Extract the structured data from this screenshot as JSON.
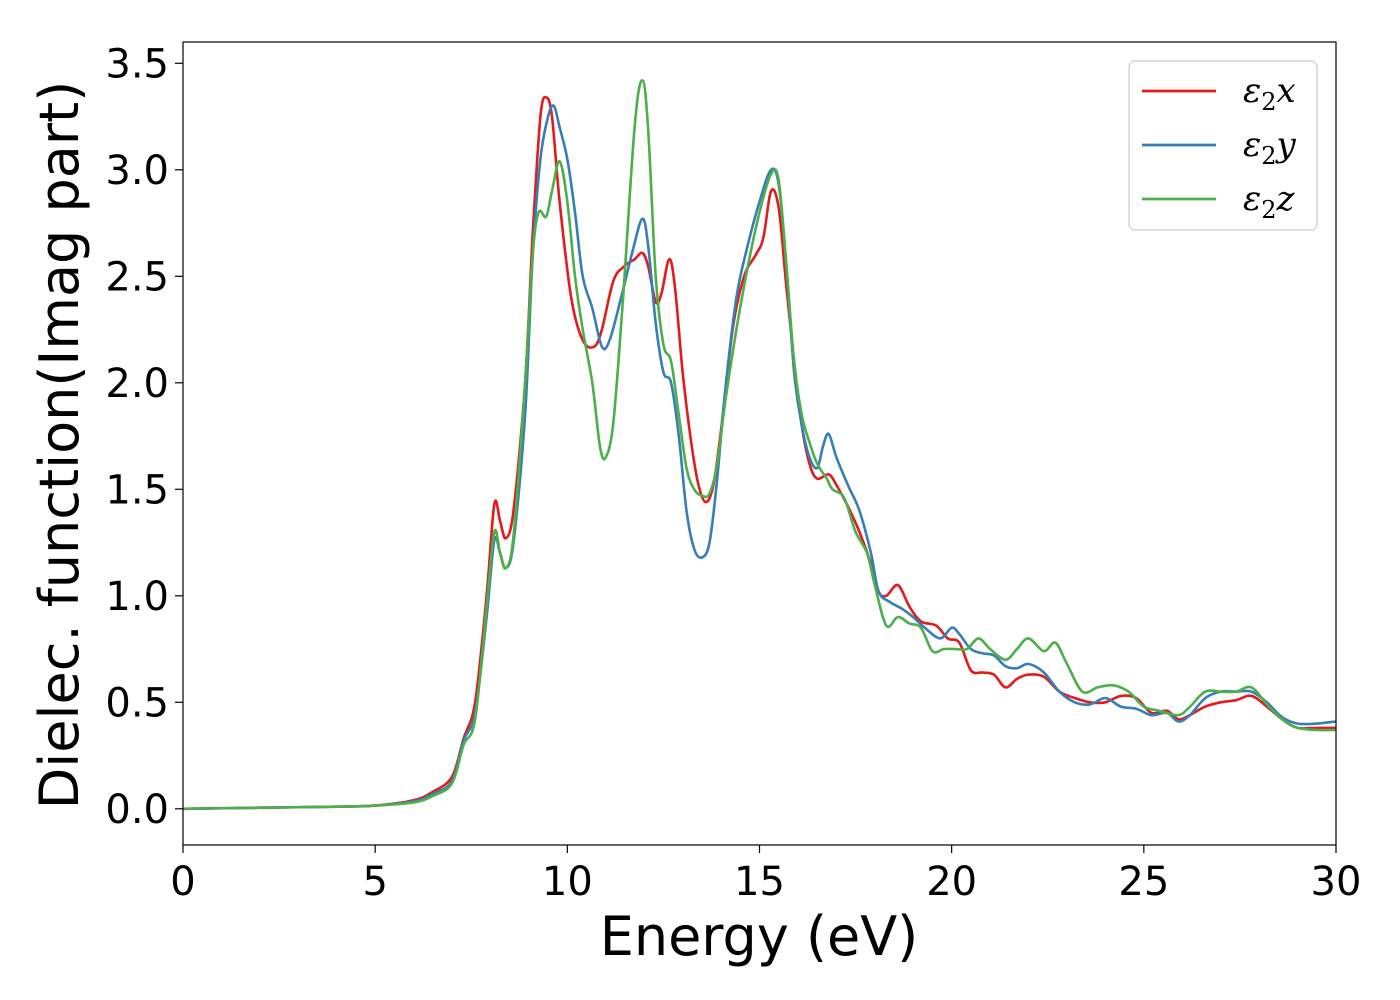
{
  "chart_data": {
    "type": "line",
    "title": "",
    "xlabel": "Energy (eV)",
    "ylabel": "Dielec. function(Imag part)",
    "xlim": [
      0,
      30
    ],
    "ylim": [
      -0.17,
      3.6
    ],
    "xticks": [
      0,
      5,
      10,
      15,
      20,
      25,
      30
    ],
    "yticks": [
      0.0,
      0.5,
      1.0,
      1.5,
      2.0,
      2.5,
      3.0,
      3.5
    ],
    "xtick_labels": [
      "0",
      "5",
      "10",
      "15",
      "20",
      "25",
      "30"
    ],
    "ytick_labels": [
      "0.0",
      "0.5",
      "1.0",
      "1.5",
      "2.0",
      "2.5",
      "3.0",
      "3.5"
    ],
    "grid": false,
    "legend_position": "top-right",
    "series": [
      {
        "name": "ε₂x",
        "legend_base": "ε",
        "legend_sub": "2",
        "legend_suffix": "x",
        "color": "#e41a1c",
        "points": [
          [
            0,
            0
          ],
          [
            2,
            0.005
          ],
          [
            4,
            0.01
          ],
          [
            5,
            0.015
          ],
          [
            6,
            0.04
          ],
          [
            6.5,
            0.08
          ],
          [
            7,
            0.15
          ],
          [
            7.3,
            0.33
          ],
          [
            7.6,
            0.5
          ],
          [
            7.9,
            1.0
          ],
          [
            8.1,
            1.43
          ],
          [
            8.25,
            1.35
          ],
          [
            8.4,
            1.27
          ],
          [
            8.6,
            1.4
          ],
          [
            8.9,
            2.0
          ],
          [
            9.1,
            2.7
          ],
          [
            9.3,
            3.25
          ],
          [
            9.45,
            3.34
          ],
          [
            9.6,
            3.25
          ],
          [
            9.8,
            2.85
          ],
          [
            10.1,
            2.4
          ],
          [
            10.4,
            2.2
          ],
          [
            10.7,
            2.17
          ],
          [
            10.9,
            2.25
          ],
          [
            11.2,
            2.48
          ],
          [
            11.5,
            2.55
          ],
          [
            11.75,
            2.58
          ],
          [
            11.95,
            2.61
          ],
          [
            12.1,
            2.55
          ],
          [
            12.3,
            2.38
          ],
          [
            12.45,
            2.42
          ],
          [
            12.65,
            2.58
          ],
          [
            12.8,
            2.45
          ],
          [
            13.0,
            2.05
          ],
          [
            13.2,
            1.75
          ],
          [
            13.4,
            1.53
          ],
          [
            13.6,
            1.44
          ],
          [
            13.8,
            1.52
          ],
          [
            14.0,
            1.78
          ],
          [
            14.3,
            2.25
          ],
          [
            14.6,
            2.5
          ],
          [
            14.9,
            2.6
          ],
          [
            15.1,
            2.68
          ],
          [
            15.3,
            2.9
          ],
          [
            15.5,
            2.82
          ],
          [
            15.7,
            2.45
          ],
          [
            15.9,
            2.1
          ],
          [
            16.1,
            1.8
          ],
          [
            16.3,
            1.62
          ],
          [
            16.5,
            1.55
          ],
          [
            16.8,
            1.57
          ],
          [
            17.0,
            1.52
          ],
          [
            17.3,
            1.42
          ],
          [
            17.6,
            1.3
          ],
          [
            17.9,
            1.15
          ],
          [
            18.1,
            1.02
          ],
          [
            18.3,
            1.0
          ],
          [
            18.6,
            1.05
          ],
          [
            18.9,
            0.95
          ],
          [
            19.2,
            0.88
          ],
          [
            19.6,
            0.86
          ],
          [
            19.9,
            0.8
          ],
          [
            20.2,
            0.78
          ],
          [
            20.5,
            0.65
          ],
          [
            20.8,
            0.64
          ],
          [
            21.1,
            0.63
          ],
          [
            21.4,
            0.57
          ],
          [
            21.7,
            0.61
          ],
          [
            22.0,
            0.63
          ],
          [
            22.4,
            0.62
          ],
          [
            22.8,
            0.55
          ],
          [
            23.2,
            0.52
          ],
          [
            23.6,
            0.5
          ],
          [
            24.0,
            0.5
          ],
          [
            24.4,
            0.53
          ],
          [
            24.8,
            0.52
          ],
          [
            25.2,
            0.45
          ],
          [
            25.6,
            0.46
          ],
          [
            25.9,
            0.42
          ],
          [
            26.2,
            0.44
          ],
          [
            26.6,
            0.48
          ],
          [
            27.0,
            0.5
          ],
          [
            27.4,
            0.51
          ],
          [
            27.8,
            0.53
          ],
          [
            28.2,
            0.48
          ],
          [
            28.6,
            0.42
          ],
          [
            29.0,
            0.38
          ],
          [
            29.5,
            0.38
          ],
          [
            30,
            0.38
          ]
        ]
      },
      {
        "name": "ε₂y",
        "legend_base": "ε",
        "legend_sub": "2",
        "legend_suffix": "y",
        "color": "#377eb8",
        "points": [
          [
            0,
            0
          ],
          [
            2,
            0.005
          ],
          [
            4,
            0.01
          ],
          [
            5,
            0.015
          ],
          [
            6,
            0.035
          ],
          [
            6.5,
            0.07
          ],
          [
            7,
            0.13
          ],
          [
            7.3,
            0.32
          ],
          [
            7.6,
            0.45
          ],
          [
            7.9,
            0.9
          ],
          [
            8.1,
            1.26
          ],
          [
            8.25,
            1.2
          ],
          [
            8.4,
            1.13
          ],
          [
            8.6,
            1.25
          ],
          [
            8.9,
            1.85
          ],
          [
            9.1,
            2.6
          ],
          [
            9.3,
            3.05
          ],
          [
            9.5,
            3.25
          ],
          [
            9.65,
            3.3
          ],
          [
            9.8,
            3.2
          ],
          [
            10.0,
            3.05
          ],
          [
            10.2,
            2.8
          ],
          [
            10.4,
            2.5
          ],
          [
            10.65,
            2.35
          ],
          [
            10.9,
            2.17
          ],
          [
            11.1,
            2.2
          ],
          [
            11.4,
            2.4
          ],
          [
            11.7,
            2.62
          ],
          [
            11.95,
            2.77
          ],
          [
            12.1,
            2.65
          ],
          [
            12.3,
            2.28
          ],
          [
            12.5,
            2.05
          ],
          [
            12.7,
            2.0
          ],
          [
            12.9,
            1.75
          ],
          [
            13.1,
            1.4
          ],
          [
            13.3,
            1.22
          ],
          [
            13.5,
            1.18
          ],
          [
            13.7,
            1.25
          ],
          [
            13.9,
            1.55
          ],
          [
            14.1,
            1.95
          ],
          [
            14.4,
            2.4
          ],
          [
            14.7,
            2.65
          ],
          [
            15.0,
            2.85
          ],
          [
            15.3,
            3.0
          ],
          [
            15.5,
            2.93
          ],
          [
            15.7,
            2.55
          ],
          [
            15.9,
            2.05
          ],
          [
            16.1,
            1.8
          ],
          [
            16.3,
            1.65
          ],
          [
            16.5,
            1.6
          ],
          [
            16.65,
            1.7
          ],
          [
            16.8,
            1.76
          ],
          [
            17.0,
            1.65
          ],
          [
            17.3,
            1.52
          ],
          [
            17.6,
            1.4
          ],
          [
            17.9,
            1.2
          ],
          [
            18.1,
            1.02
          ],
          [
            18.4,
            0.97
          ],
          [
            18.7,
            0.94
          ],
          [
            19.0,
            0.9
          ],
          [
            19.3,
            0.85
          ],
          [
            19.7,
            0.8
          ],
          [
            20.0,
            0.85
          ],
          [
            20.2,
            0.82
          ],
          [
            20.5,
            0.75
          ],
          [
            20.8,
            0.73
          ],
          [
            21.1,
            0.72
          ],
          [
            21.4,
            0.67
          ],
          [
            21.7,
            0.66
          ],
          [
            22.0,
            0.68
          ],
          [
            22.4,
            0.64
          ],
          [
            22.8,
            0.55
          ],
          [
            23.2,
            0.5
          ],
          [
            23.6,
            0.49
          ],
          [
            24.0,
            0.52
          ],
          [
            24.4,
            0.48
          ],
          [
            24.8,
            0.47
          ],
          [
            25.2,
            0.44
          ],
          [
            25.6,
            0.45
          ],
          [
            25.9,
            0.41
          ],
          [
            26.2,
            0.44
          ],
          [
            26.6,
            0.52
          ],
          [
            27.0,
            0.55
          ],
          [
            27.4,
            0.55
          ],
          [
            27.8,
            0.55
          ],
          [
            28.2,
            0.5
          ],
          [
            28.6,
            0.43
          ],
          [
            29.0,
            0.4
          ],
          [
            29.5,
            0.4
          ],
          [
            30,
            0.41
          ]
        ]
      },
      {
        "name": "ε₂z",
        "legend_base": "ε",
        "legend_sub": "2",
        "legend_suffix": "z",
        "color": "#4daf4a",
        "points": [
          [
            0,
            0
          ],
          [
            2,
            0.005
          ],
          [
            4,
            0.01
          ],
          [
            5,
            0.015
          ],
          [
            6,
            0.03
          ],
          [
            6.5,
            0.06
          ],
          [
            7,
            0.12
          ],
          [
            7.3,
            0.3
          ],
          [
            7.6,
            0.42
          ],
          [
            7.9,
            0.95
          ],
          [
            8.1,
            1.3
          ],
          [
            8.25,
            1.2
          ],
          [
            8.4,
            1.13
          ],
          [
            8.6,
            1.28
          ],
          [
            8.9,
            2.0
          ],
          [
            9.1,
            2.6
          ],
          [
            9.25,
            2.8
          ],
          [
            9.45,
            2.78
          ],
          [
            9.6,
            2.9
          ],
          [
            9.8,
            3.04
          ],
          [
            10.0,
            2.85
          ],
          [
            10.2,
            2.5
          ],
          [
            10.4,
            2.25
          ],
          [
            10.65,
            2.0
          ],
          [
            10.85,
            1.7
          ],
          [
            11.0,
            1.65
          ],
          [
            11.2,
            1.82
          ],
          [
            11.45,
            2.4
          ],
          [
            11.75,
            3.2
          ],
          [
            11.95,
            3.42
          ],
          [
            12.1,
            3.2
          ],
          [
            12.3,
            2.5
          ],
          [
            12.5,
            2.18
          ],
          [
            12.7,
            2.1
          ],
          [
            12.9,
            1.85
          ],
          [
            13.1,
            1.6
          ],
          [
            13.3,
            1.5
          ],
          [
            13.5,
            1.47
          ],
          [
            13.7,
            1.48
          ],
          [
            13.9,
            1.62
          ],
          [
            14.1,
            1.9
          ],
          [
            14.4,
            2.25
          ],
          [
            14.7,
            2.55
          ],
          [
            15.0,
            2.8
          ],
          [
            15.3,
            2.98
          ],
          [
            15.5,
            2.95
          ],
          [
            15.7,
            2.55
          ],
          [
            15.9,
            2.1
          ],
          [
            16.1,
            1.85
          ],
          [
            16.3,
            1.72
          ],
          [
            16.5,
            1.62
          ],
          [
            16.75,
            1.55
          ],
          [
            16.9,
            1.5
          ],
          [
            17.2,
            1.46
          ],
          [
            17.5,
            1.3
          ],
          [
            17.8,
            1.2
          ],
          [
            18.0,
            1.05
          ],
          [
            18.3,
            0.86
          ],
          [
            18.6,
            0.9
          ],
          [
            18.9,
            0.87
          ],
          [
            19.2,
            0.85
          ],
          [
            19.5,
            0.74
          ],
          [
            19.8,
            0.75
          ],
          [
            20.1,
            0.75
          ],
          [
            20.4,
            0.75
          ],
          [
            20.7,
            0.8
          ],
          [
            21.0,
            0.75
          ],
          [
            21.4,
            0.7
          ],
          [
            21.7,
            0.75
          ],
          [
            22.0,
            0.8
          ],
          [
            22.4,
            0.74
          ],
          [
            22.7,
            0.78
          ],
          [
            23.0,
            0.68
          ],
          [
            23.4,
            0.55
          ],
          [
            23.8,
            0.57
          ],
          [
            24.2,
            0.58
          ],
          [
            24.6,
            0.55
          ],
          [
            25.0,
            0.48
          ],
          [
            25.4,
            0.46
          ],
          [
            25.9,
            0.44
          ],
          [
            26.2,
            0.48
          ],
          [
            26.6,
            0.55
          ],
          [
            27.0,
            0.55
          ],
          [
            27.4,
            0.55
          ],
          [
            27.8,
            0.57
          ],
          [
            28.2,
            0.49
          ],
          [
            28.6,
            0.42
          ],
          [
            29.0,
            0.38
          ],
          [
            29.5,
            0.37
          ],
          [
            30,
            0.37
          ]
        ]
      }
    ]
  }
}
